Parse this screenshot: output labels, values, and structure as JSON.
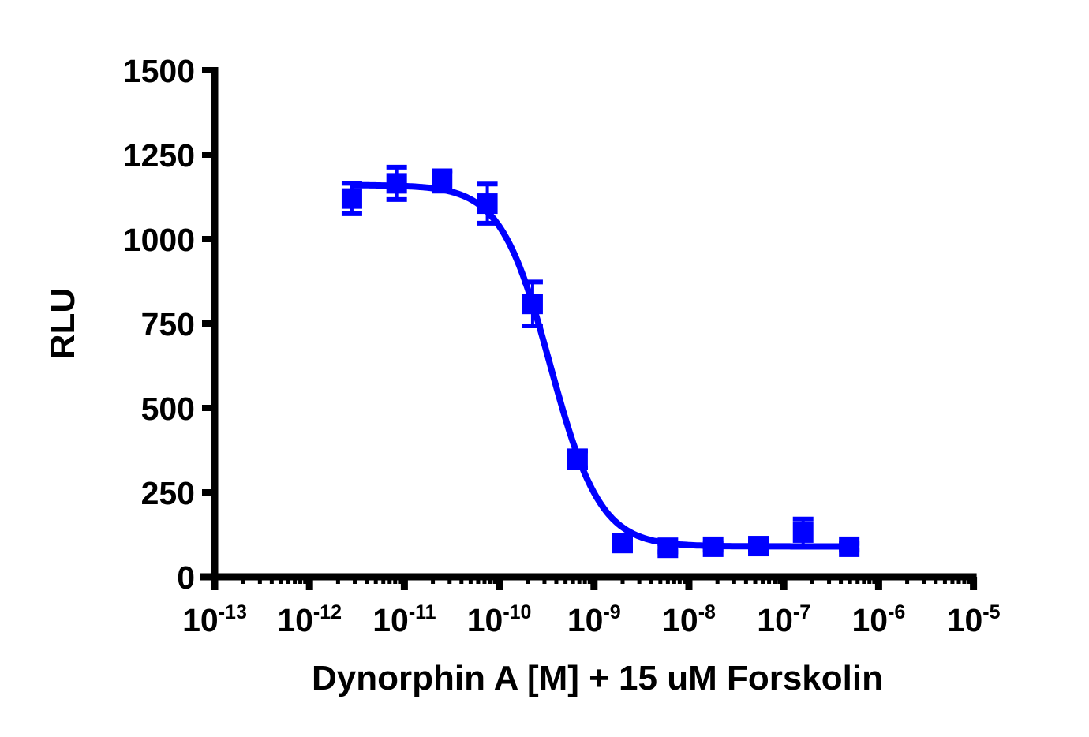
{
  "chart_data": {
    "type": "scatter",
    "title": "",
    "xlabel": "Dynorphin A [M] + 15 uM Forskolin",
    "ylabel": "RLU",
    "xscale": "log",
    "xlim": [
      1e-13,
      1e-05
    ],
    "ylim": [
      0,
      1500
    ],
    "grid": false,
    "legend": null,
    "x_ticks": [
      {
        "base": "10",
        "exp": "-13"
      },
      {
        "base": "10",
        "exp": "-12"
      },
      {
        "base": "10",
        "exp": "-11"
      },
      {
        "base": "10",
        "exp": "-10"
      },
      {
        "base": "10",
        "exp": "-9"
      },
      {
        "base": "10",
        "exp": "-8"
      },
      {
        "base": "10",
        "exp": "-7"
      },
      {
        "base": "10",
        "exp": "-6"
      },
      {
        "base": "10",
        "exp": "-5"
      }
    ],
    "y_ticks": [
      "0",
      "250",
      "500",
      "750",
      "1000",
      "1250",
      "1500"
    ],
    "color": "#0000ff",
    "series": [
      {
        "name": "Dynorphin A",
        "marker": "square",
        "x": [
          2.8e-12,
          8.3e-12,
          2.5e-11,
          7.5e-11,
          2.25e-10,
          6.7e-10,
          2e-09,
          6e-09,
          1.8e-08,
          5.4e-08,
          1.6e-07,
          4.9e-07
        ],
        "y": [
          1120,
          1165,
          1172,
          1105,
          808,
          348,
          100,
          86,
          89,
          91,
          131,
          89
        ],
        "error": [
          45,
          48,
          30,
          58,
          65,
          25,
          15,
          12,
          10,
          12,
          40,
          10
        ]
      }
    ],
    "fit": {
      "model": "4PL sigmoidal dose-response",
      "top": 1160,
      "bottom": 90,
      "logIC50": -9.46,
      "hill_slope": -1.65,
      "x_range": [
        2.8e-12,
        4.9e-07
      ]
    }
  }
}
